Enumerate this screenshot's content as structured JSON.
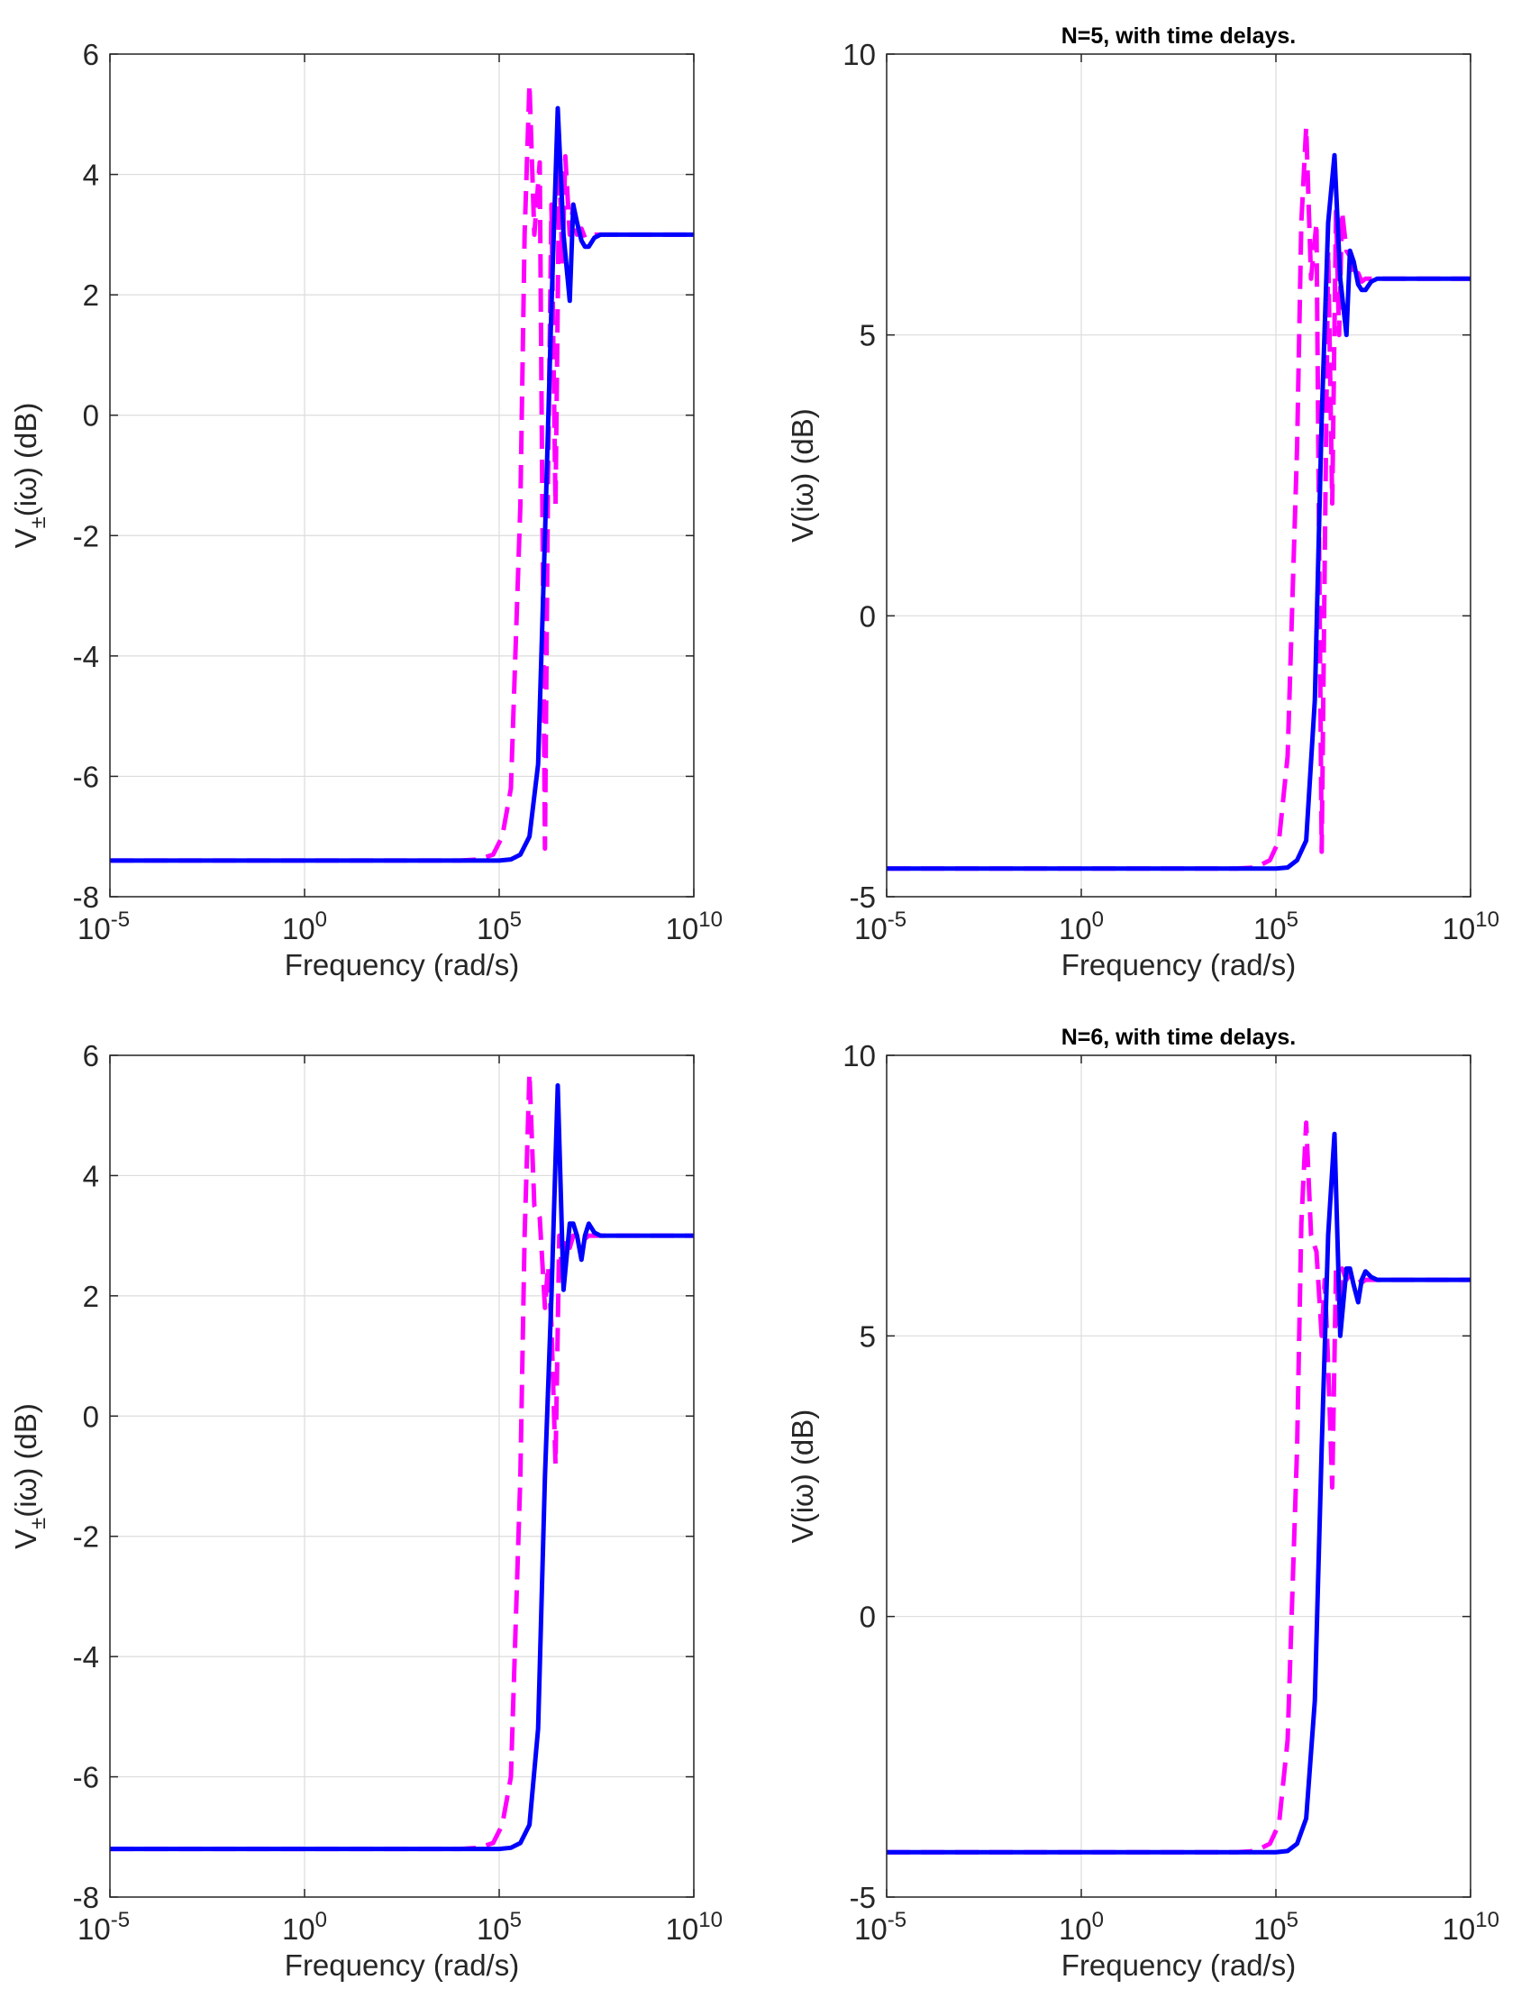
{
  "chart_data": [
    {
      "type": "line",
      "title": "",
      "xlabel": "Frequency (rad/s)",
      "ylabel": {
        "main": "V",
        "sub": "±",
        "rest": "(iω) (dB)"
      },
      "xscale": "log",
      "xlim": [
        1e-05,
        10000000000.0
      ],
      "ylim": [
        -8,
        6
      ],
      "yticks": [
        -8,
        -6,
        -4,
        -2,
        0,
        2,
        4,
        6
      ],
      "ytick_labels": [
        "-8",
        "-6",
        "-4",
        "-2",
        "0",
        "2",
        "4",
        "6"
      ],
      "xticks": [
        {
          "value": 1e-05,
          "base": "10",
          "exp": "-5"
        },
        {
          "value": 1,
          "base": "10",
          "exp": "0"
        },
        {
          "value": 100000.0,
          "base": "10",
          "exp": "5"
        },
        {
          "value": 10000000000.0,
          "base": "10",
          "exp": "10"
        }
      ],
      "grid": true,
      "series": [
        {
          "style": "dashed",
          "color": "#ff00ff",
          "x": [
            1e-05,
            1000.0,
            10000.0,
            30000.0,
            70000.0,
            120000.0,
            200000.0,
            350000.0,
            450000.0,
            600000.0,
            800000.0,
            1100000.0,
            1500000.0,
            1800000.0,
            2200000.0,
            2800000.0,
            3500000.0,
            4200000.0,
            5000000.0,
            6500000.0,
            8000000.0,
            10000000.0,
            13000000.0,
            16000000.0,
            20000000.0,
            30000000.0,
            50000000.0,
            100000000.0,
            300000000.0,
            10000000000.0
          ],
          "y": [
            -7.4,
            -7.4,
            -7.4,
            -7.38,
            -7.3,
            -7.0,
            -6.2,
            -1.5,
            3.0,
            5.5,
            3.0,
            4.2,
            -7.2,
            -1.0,
            3.5,
            -1.5,
            4.2,
            2.5,
            4.3,
            3.0,
            3.5,
            3.0,
            3.1,
            2.95,
            3.0,
            3.0,
            3.0,
            3.0,
            3.0,
            3.0
          ]
        },
        {
          "style": "solid",
          "color": "#0000ff",
          "x": [
            1e-05,
            10000.0,
            100000.0,
            200000.0,
            350000.0,
            600000.0,
            1000000.0,
            1500000.0,
            2200000.0,
            3200000.0,
            4500000.0,
            6500000.0,
            8000000.0,
            10000000.0,
            13000000.0,
            16000000.0,
            20000000.0,
            28000000.0,
            40000000.0,
            60000000.0,
            100000000.0,
            300000000.0,
            10000000000.0
          ],
          "y": [
            -7.4,
            -7.4,
            -7.4,
            -7.38,
            -7.3,
            -7.0,
            -5.8,
            -2.0,
            1.8,
            5.1,
            3.0,
            1.9,
            3.5,
            3.2,
            2.9,
            2.8,
            2.8,
            2.95,
            3.0,
            3.0,
            3.0,
            3.0,
            3.0
          ]
        }
      ]
    },
    {
      "type": "line",
      "title": "N=5, with time delays.",
      "xlabel": "Frequency (rad/s)",
      "ylabel": {
        "main": "V",
        "sub": "",
        "rest": "(iω) (dB)"
      },
      "xscale": "log",
      "xlim": [
        1e-05,
        10000000000.0
      ],
      "ylim": [
        -5,
        10
      ],
      "yticks": [
        -5,
        0,
        5,
        10
      ],
      "ytick_labels": [
        "-5",
        "0",
        "5",
        "10"
      ],
      "xticks": [
        {
          "value": 1e-05,
          "base": "10",
          "exp": "-5"
        },
        {
          "value": 1,
          "base": "10",
          "exp": "0"
        },
        {
          "value": 100000.0,
          "base": "10",
          "exp": "5"
        },
        {
          "value": 10000000000.0,
          "base": "10",
          "exp": "10"
        }
      ],
      "grid": true,
      "series": [
        {
          "style": "dashed",
          "color": "#ff00ff",
          "x": [
            1e-05,
            1000.0,
            10000.0,
            30000.0,
            70000.0,
            120000.0,
            200000.0,
            350000.0,
            450000.0,
            600000.0,
            800000.0,
            1100000.0,
            1500000.0,
            1800000.0,
            2200000.0,
            2800000.0,
            3500000.0,
            4200000.0,
            5000000.0,
            6500000.0,
            8000000.0,
            10000000.0,
            13000000.0,
            16000000.0,
            20000000.0,
            30000000.0,
            50000000.0,
            100000000.0,
            300000000.0,
            10000000000.0
          ],
          "y": [
            -4.5,
            -4.5,
            -4.5,
            -4.48,
            -4.35,
            -4.0,
            -2.5,
            3.0,
            7.0,
            8.7,
            6.0,
            7.0,
            -4.2,
            1.0,
            6.5,
            2.0,
            7.2,
            5.0,
            7.2,
            6.5,
            6.4,
            6.0,
            6.1,
            5.95,
            6.0,
            6.0,
            6.0,
            6.0,
            6.0,
            6.0
          ]
        },
        {
          "style": "solid",
          "color": "#0000ff",
          "x": [
            1e-05,
            10000.0,
            100000.0,
            200000.0,
            350000.0,
            600000.0,
            1000000.0,
            1500000.0,
            2200000.0,
            3200000.0,
            4500000.0,
            6500000.0,
            8000000.0,
            10000000.0,
            13000000.0,
            16000000.0,
            20000000.0,
            28000000.0,
            40000000.0,
            60000000.0,
            100000000.0,
            300000000.0,
            10000000000.0
          ],
          "y": [
            -4.5,
            -4.5,
            -4.5,
            -4.48,
            -4.35,
            -4.0,
            -1.5,
            3.5,
            7.0,
            8.2,
            6.0,
            5.0,
            6.5,
            6.3,
            5.9,
            5.8,
            5.8,
            5.95,
            6.0,
            6.0,
            6.0,
            6.0,
            6.0
          ]
        }
      ]
    },
    {
      "type": "line",
      "title": "",
      "xlabel": "Frequency (rad/s)",
      "ylabel": {
        "main": "V",
        "sub": "±",
        "rest": "(iω) (dB)"
      },
      "xscale": "log",
      "xlim": [
        1e-05,
        10000000000.0
      ],
      "ylim": [
        -8,
        6
      ],
      "yticks": [
        -8,
        -6,
        -4,
        -2,
        0,
        2,
        4,
        6
      ],
      "ytick_labels": [
        "-8",
        "-6",
        "-4",
        "-2",
        "0",
        "2",
        "4",
        "6"
      ],
      "xticks": [
        {
          "value": 1e-05,
          "base": "10",
          "exp": "-5"
        },
        {
          "value": 1,
          "base": "10",
          "exp": "0"
        },
        {
          "value": 100000.0,
          "base": "10",
          "exp": "5"
        },
        {
          "value": 10000000000.0,
          "base": "10",
          "exp": "10"
        }
      ],
      "grid": true,
      "series": [
        {
          "style": "dashed",
          "color": "#ff00ff",
          "x": [
            1e-05,
            1000.0,
            10000.0,
            30000.0,
            70000.0,
            120000.0,
            200000.0,
            350000.0,
            450000.0,
            600000.0,
            800000.0,
            1100000.0,
            1500000.0,
            1800000.0,
            2200000.0,
            2800000.0,
            3500000.0,
            4200000.0,
            5000000.0,
            6500000.0,
            8000000.0,
            10000000.0,
            13000000.0,
            16000000.0,
            20000000.0,
            30000000.0,
            50000000.0,
            100000000.0,
            300000000.0,
            10000000000.0
          ],
          "y": [
            -7.2,
            -7.2,
            -7.2,
            -7.18,
            -7.1,
            -6.8,
            -6.0,
            -1.0,
            3.0,
            5.7,
            3.5,
            3.3,
            1.8,
            2.5,
            1.5,
            -0.8,
            3.0,
            2.3,
            3.0,
            2.8,
            3.0,
            3.0,
            3.05,
            2.95,
            3.0,
            3.0,
            3.0,
            3.0,
            3.0,
            3.0
          ]
        },
        {
          "style": "solid",
          "color": "#0000ff",
          "x": [
            1e-05,
            10000.0,
            100000.0,
            200000.0,
            350000.0,
            600000.0,
            1000000.0,
            1500000.0,
            2200000.0,
            3200000.0,
            4500000.0,
            6500000.0,
            8000000.0,
            10000000.0,
            13000000.0,
            16000000.0,
            20000000.0,
            28000000.0,
            40000000.0,
            60000000.0,
            100000000.0,
            300000000.0,
            10000000000.0
          ],
          "y": [
            -7.2,
            -7.2,
            -7.2,
            -7.18,
            -7.1,
            -6.8,
            -5.2,
            -1.0,
            2.0,
            5.5,
            2.1,
            3.2,
            3.2,
            3.0,
            2.6,
            3.0,
            3.2,
            3.05,
            3.0,
            3.0,
            3.0,
            3.0,
            3.0
          ]
        }
      ]
    },
    {
      "type": "line",
      "title": "N=6, with time delays.",
      "xlabel": "Frequency (rad/s)",
      "ylabel": {
        "main": "V",
        "sub": "",
        "rest": "(iω) (dB)"
      },
      "xscale": "log",
      "xlim": [
        1e-05,
        10000000000.0
      ],
      "ylim": [
        -5,
        10
      ],
      "yticks": [
        -5,
        0,
        5,
        10
      ],
      "ytick_labels": [
        "-5",
        "0",
        "5",
        "10"
      ],
      "xticks": [
        {
          "value": 1e-05,
          "base": "10",
          "exp": "-5"
        },
        {
          "value": 1,
          "base": "10",
          "exp": "0"
        },
        {
          "value": 100000.0,
          "base": "10",
          "exp": "5"
        },
        {
          "value": 10000000000.0,
          "base": "10",
          "exp": "10"
        }
      ],
      "grid": true,
      "series": [
        {
          "style": "dashed",
          "color": "#ff00ff",
          "x": [
            1e-05,
            1000.0,
            10000.0,
            30000.0,
            70000.0,
            120000.0,
            200000.0,
            350000.0,
            450000.0,
            600000.0,
            800000.0,
            1100000.0,
            1500000.0,
            1800000.0,
            2200000.0,
            2800000.0,
            3500000.0,
            4200000.0,
            5000000.0,
            6500000.0,
            8000000.0,
            10000000.0,
            13000000.0,
            16000000.0,
            20000000.0,
            30000000.0,
            50000000.0,
            100000000.0,
            300000000.0,
            10000000000.0
          ],
          "y": [
            -4.2,
            -4.2,
            -4.2,
            -4.18,
            -4.05,
            -3.7,
            -2.2,
            3.0,
            7.0,
            8.8,
            6.8,
            6.5,
            5.0,
            6.0,
            4.5,
            2.3,
            6.2,
            5.2,
            6.2,
            6.0,
            6.1,
            6.0,
            6.05,
            5.95,
            6.0,
            6.0,
            6.0,
            6.0,
            6.0,
            6.0
          ]
        },
        {
          "style": "solid",
          "color": "#0000ff",
          "x": [
            1e-05,
            10000.0,
            100000.0,
            200000.0,
            350000.0,
            600000.0,
            1000000.0,
            1500000.0,
            2200000.0,
            3200000.0,
            4500000.0,
            6500000.0,
            8000000.0,
            10000000.0,
            13000000.0,
            16000000.0,
            20000000.0,
            28000000.0,
            40000000.0,
            60000000.0,
            100000000.0,
            300000000.0,
            10000000000.0
          ],
          "y": [
            -4.2,
            -4.2,
            -4.2,
            -4.18,
            -4.05,
            -3.6,
            -1.5,
            3.0,
            6.8,
            8.6,
            5.0,
            6.2,
            6.2,
            5.9,
            5.6,
            6.0,
            6.15,
            6.05,
            6.0,
            6.0,
            6.0,
            6.0,
            6.0
          ]
        }
      ]
    }
  ]
}
